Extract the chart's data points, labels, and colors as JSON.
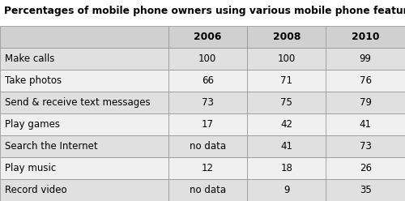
{
  "title": "Percentages of mobile phone owners using various mobile phone features",
  "columns": [
    "",
    "2006",
    "2008",
    "2010"
  ],
  "rows": [
    [
      "Make calls",
      "100",
      "100",
      "99"
    ],
    [
      "Take photos",
      "66",
      "71",
      "76"
    ],
    [
      "Send & receive text messages",
      "73",
      "75",
      "79"
    ],
    [
      "Play games",
      "17",
      "42",
      "41"
    ],
    [
      "Search the Internet",
      "no data",
      "41",
      "73"
    ],
    [
      "Play music",
      "12",
      "18",
      "26"
    ],
    [
      "Record video",
      "no data",
      "9",
      "35"
    ]
  ],
  "header_bg": "#d0d0d0",
  "row_bg_odd": "#e0e0e0",
  "row_bg_even": "#f0f0f0",
  "title_fontsize": 8.8,
  "cell_fontsize": 8.5,
  "header_fontsize": 8.8,
  "figsize": [
    5.0,
    2.48
  ],
  "dpi": 100
}
